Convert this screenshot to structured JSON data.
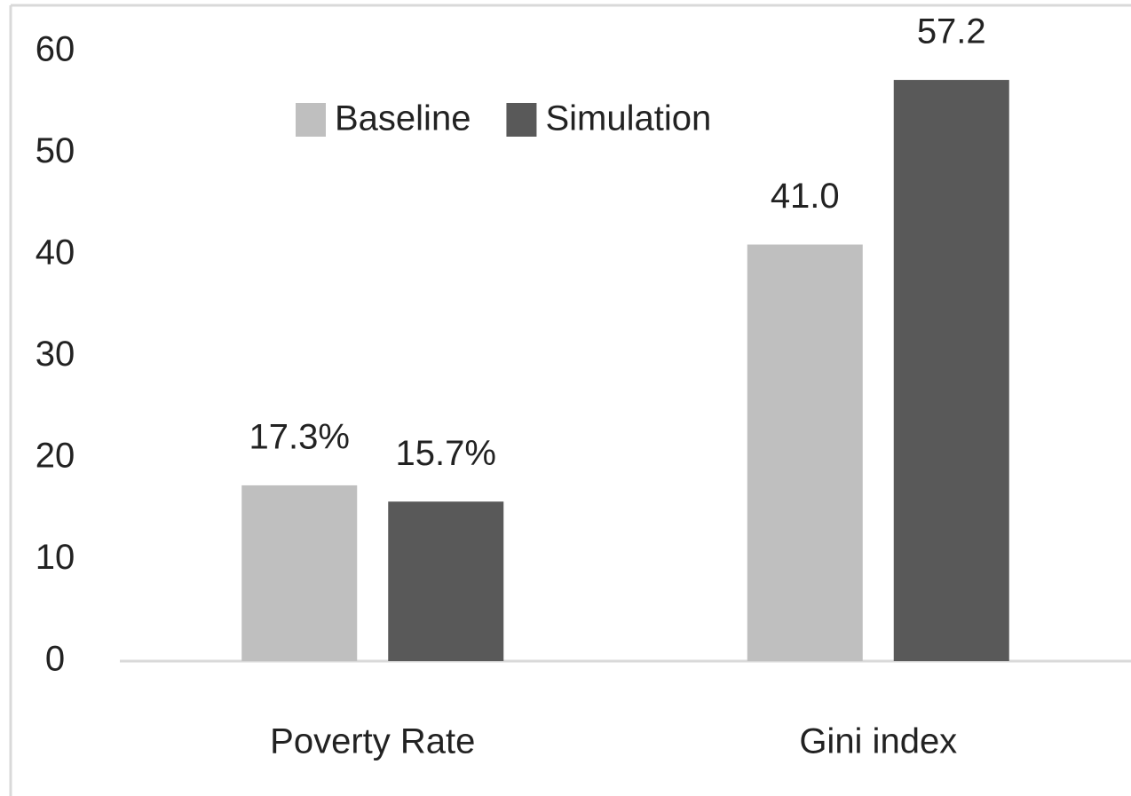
{
  "chart_data": {
    "type": "bar",
    "categories": [
      "Poverty Rate",
      "Gini index"
    ],
    "series": [
      {
        "name": "Baseline",
        "color": "#bfbfbf",
        "values": [
          17.3,
          41.0
        ],
        "value_labels": [
          "17.3%",
          "41.0"
        ]
      },
      {
        "name": "Simulation",
        "color": "#595959",
        "values": [
          15.7,
          57.2
        ],
        "value_labels": [
          "15.7%",
          "57.2"
        ]
      }
    ],
    "ylim": [
      0,
      60
    ],
    "yticks": [
      0,
      10,
      20,
      30,
      40,
      50,
      60
    ],
    "grid": false,
    "legend": "top"
  }
}
